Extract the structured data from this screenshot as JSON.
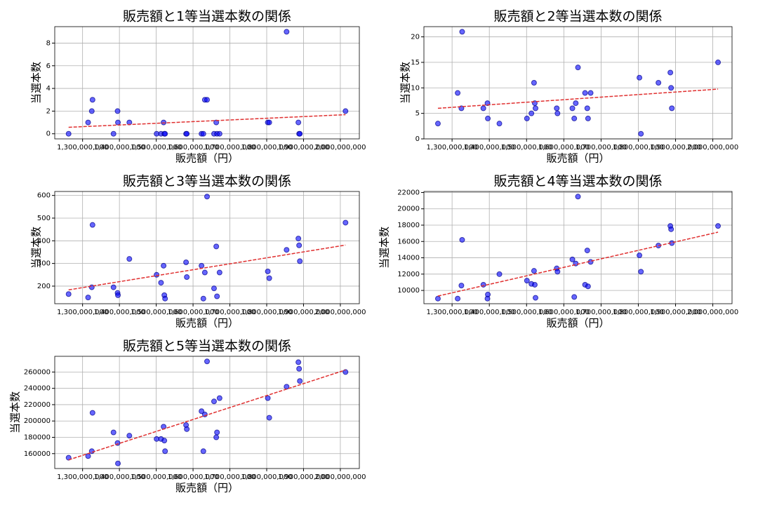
{
  "chart_data": [
    {
      "type": "scatter",
      "title": "販売額と1等当選本数の関係",
      "xlabel": "販売額（円）",
      "ylabel": "当選本数",
      "color": "#0000ff",
      "trendline": true,
      "trend_color": "#e03030",
      "grid": true,
      "x": [
        1262000000,
        1315000000,
        1325000000,
        1327000000,
        1384000000,
        1395000000,
        1396000000,
        1427000000,
        1501000000,
        1513000000,
        1520000000,
        1522000000,
        1524000000,
        1581000000,
        1583000000,
        1623000000,
        1628000000,
        1632000000,
        1638000000,
        1657000000,
        1663000000,
        1665000000,
        1672000000,
        1803000000,
        1807000000,
        1854000000,
        1886000000,
        1888000000,
        1890000000,
        2014000000
      ],
      "values": [
        0,
        1,
        2,
        3,
        0,
        2,
        1,
        1,
        0,
        0,
        1,
        0,
        0,
        0,
        0,
        0,
        0,
        3,
        3,
        0,
        1,
        0,
        0,
        1,
        1,
        9,
        1,
        0,
        0,
        2
      ],
      "xlim": [
        1224400000,
        2051600000
      ],
      "ylim": [
        -0.45,
        9.45
      ],
      "yticks": [
        0,
        2,
        4,
        6,
        8
      ],
      "xticks": [
        {
          "value": 1300000000,
          "label": "1,300,000,000"
        },
        {
          "value": 1400000000,
          "label": "1,400,000,000"
        },
        {
          "value": 1500000000,
          "label": "1,500,000,000"
        },
        {
          "value": 1600000000,
          "label": "1,600,000,000"
        },
        {
          "value": 1700000000,
          "label": "1,700,000,000"
        },
        {
          "value": 1800000000,
          "label": "1,800,000,000"
        },
        {
          "value": 1900000000,
          "label": "1,900,000,000"
        },
        {
          "value": 2000000000,
          "label": "2,000,000,000"
        }
      ]
    },
    {
      "type": "scatter",
      "title": "販売額と2等当選本数の関係",
      "xlabel": "販売額（円）",
      "ylabel": "当選本数",
      "color": "#0000ff",
      "trendline": true,
      "trend_color": "#e03030",
      "grid": true,
      "x": [
        1262000000,
        1315000000,
        1325000000,
        1327000000,
        1384000000,
        1395000000,
        1396000000,
        1427000000,
        1501000000,
        1513000000,
        1520000000,
        1522000000,
        1524000000,
        1581000000,
        1583000000,
        1623000000,
        1628000000,
        1632000000,
        1638000000,
        1657000000,
        1663000000,
        1665000000,
        1672000000,
        1803000000,
        1807000000,
        1854000000,
        1886000000,
        1888000000,
        1890000000,
        2014000000
      ],
      "values": [
        3,
        9,
        6,
        21,
        6,
        7,
        4,
        3,
        4,
        5,
        11,
        7,
        6,
        6,
        5,
        6,
        4,
        7,
        14,
        9,
        6,
        4,
        9,
        12,
        1,
        11,
        13,
        10,
        6,
        15
      ],
      "xlim": [
        1224400000,
        2051600000
      ],
      "ylim": [
        0,
        22
      ],
      "yticks": [
        0,
        5,
        10,
        15,
        20
      ],
      "xticks": [
        {
          "value": 1300000000,
          "label": "1,300,000,000"
        },
        {
          "value": 1400000000,
          "label": "1,400,000,000"
        },
        {
          "value": 1500000000,
          "label": "1,500,000,000"
        },
        {
          "value": 1600000000,
          "label": "1,600,000,000"
        },
        {
          "value": 1700000000,
          "label": "1,700,000,000"
        },
        {
          "value": 1800000000,
          "label": "1,800,000,000"
        },
        {
          "value": 1900000000,
          "label": "1,900,000,000"
        },
        {
          "value": 2000000000,
          "label": "2,000,000,000"
        }
      ]
    },
    {
      "type": "scatter",
      "title": "販売額と3等当選本数の関係",
      "xlabel": "販売額（円）",
      "ylabel": "当選本数",
      "color": "#0000ff",
      "trendline": true,
      "trend_color": "#e03030",
      "grid": true,
      "x": [
        1262000000,
        1315000000,
        1325000000,
        1327000000,
        1384000000,
        1395000000,
        1396000000,
        1427000000,
        1501000000,
        1513000000,
        1520000000,
        1522000000,
        1524000000,
        1581000000,
        1583000000,
        1623000000,
        1628000000,
        1632000000,
        1638000000,
        1657000000,
        1663000000,
        1665000000,
        1672000000,
        1803000000,
        1807000000,
        1854000000,
        1886000000,
        1888000000,
        1890000000,
        2014000000
      ],
      "values": [
        165,
        150,
        195,
        470,
        195,
        170,
        160,
        320,
        250,
        215,
        290,
        160,
        145,
        305,
        240,
        290,
        145,
        260,
        595,
        190,
        375,
        155,
        260,
        265,
        235,
        360,
        410,
        380,
        310,
        480
      ],
      "xlim": [
        1224400000,
        2051600000
      ],
      "ylim": [
        122.5,
        617.5
      ],
      "yticks": [
        200,
        300,
        400,
        500,
        600
      ],
      "xticks": [
        {
          "value": 1300000000,
          "label": "1,300,000,000"
        },
        {
          "value": 1400000000,
          "label": "1,400,000,000"
        },
        {
          "value": 1500000000,
          "label": "1,500,000,000"
        },
        {
          "value": 1600000000,
          "label": "1,600,000,000"
        },
        {
          "value": 1700000000,
          "label": "1,700,000,000"
        },
        {
          "value": 1800000000,
          "label": "1,800,000,000"
        },
        {
          "value": 1900000000,
          "label": "1,900,000,000"
        },
        {
          "value": 2000000000,
          "label": "2,000,000,000"
        }
      ]
    },
    {
      "type": "scatter",
      "title": "販売額と4等当選本数の関係",
      "xlabel": "販売額（円）",
      "ylabel": "当選本数",
      "color": "#0000ff",
      "trendline": true,
      "trend_color": "#e03030",
      "grid": true,
      "x": [
        1262000000,
        1315000000,
        1325000000,
        1327000000,
        1384000000,
        1395000000,
        1396000000,
        1427000000,
        1501000000,
        1513000000,
        1520000000,
        1522000000,
        1524000000,
        1581000000,
        1583000000,
        1623000000,
        1628000000,
        1632000000,
        1638000000,
        1657000000,
        1663000000,
        1665000000,
        1672000000,
        1803000000,
        1807000000,
        1854000000,
        1886000000,
        1888000000,
        1890000000,
        2014000000
      ],
      "values": [
        9000,
        9000,
        10600,
        16200,
        10700,
        9000,
        9500,
        12000,
        11200,
        10800,
        12400,
        10700,
        9100,
        12700,
        12300,
        13800,
        9200,
        13300,
        21500,
        10700,
        14900,
        10500,
        13500,
        14300,
        12300,
        15500,
        17900,
        17500,
        15800,
        17900
      ],
      "xlim": [
        1224400000,
        2051600000
      ],
      "ylim": [
        8375,
        22125
      ],
      "yticks": [
        10000,
        12000,
        14000,
        16000,
        18000,
        20000,
        22000
      ],
      "xticks": [
        {
          "value": 1300000000,
          "label": "1,300,000,000"
        },
        {
          "value": 1400000000,
          "label": "1,400,000,000"
        },
        {
          "value": 1500000000,
          "label": "1,500,000,000"
        },
        {
          "value": 1600000000,
          "label": "1,600,000,000"
        },
        {
          "value": 1700000000,
          "label": "1,700,000,000"
        },
        {
          "value": 1800000000,
          "label": "1,800,000,000"
        },
        {
          "value": 1900000000,
          "label": "1,900,000,000"
        },
        {
          "value": 2000000000,
          "label": "2,000,000,000"
        }
      ]
    },
    {
      "type": "scatter",
      "title": "販売額と5等当選本数の関係",
      "xlabel": "販売額（円）",
      "ylabel": "当選本数",
      "color": "#0000ff",
      "trendline": true,
      "trend_color": "#e03030",
      "grid": true,
      "x": [
        1262000000,
        1315000000,
        1325000000,
        1327000000,
        1384000000,
        1395000000,
        1396000000,
        1427000000,
        1501000000,
        1513000000,
        1520000000,
        1522000000,
        1524000000,
        1581000000,
        1583000000,
        1623000000,
        1628000000,
        1632000000,
        1638000000,
        1657000000,
        1663000000,
        1665000000,
        1672000000,
        1803000000,
        1807000000,
        1854000000,
        1886000000,
        1888000000,
        1890000000,
        2014000000
      ],
      "values": [
        155000,
        157000,
        163000,
        210000,
        186000,
        173000,
        148000,
        182000,
        178000,
        178000,
        193000,
        176000,
        163000,
        195000,
        190000,
        212000,
        163000,
        208000,
        273000,
        224000,
        180000,
        186000,
        228000,
        228000,
        204000,
        242000,
        272000,
        264000,
        249000,
        260000
      ],
      "xlim": [
        1224400000,
        2051600000
      ],
      "ylim": [
        141750,
        279250
      ],
      "yticks": [
        160000,
        180000,
        200000,
        220000,
        240000,
        260000
      ],
      "xticks": [
        {
          "value": 1300000000,
          "label": "1,300,000,000"
        },
        {
          "value": 1400000000,
          "label": "1,400,000,000"
        },
        {
          "value": 1500000000,
          "label": "1,500,000,000"
        },
        {
          "value": 1600000000,
          "label": "1,600,000,000"
        },
        {
          "value": 1700000000,
          "label": "1,700,000,000"
        },
        {
          "value": 1800000000,
          "label": "1,800,000,000"
        },
        {
          "value": 1900000000,
          "label": "1,900,000,000"
        },
        {
          "value": 2000000000,
          "label": "2,000,000,000"
        }
      ]
    }
  ]
}
